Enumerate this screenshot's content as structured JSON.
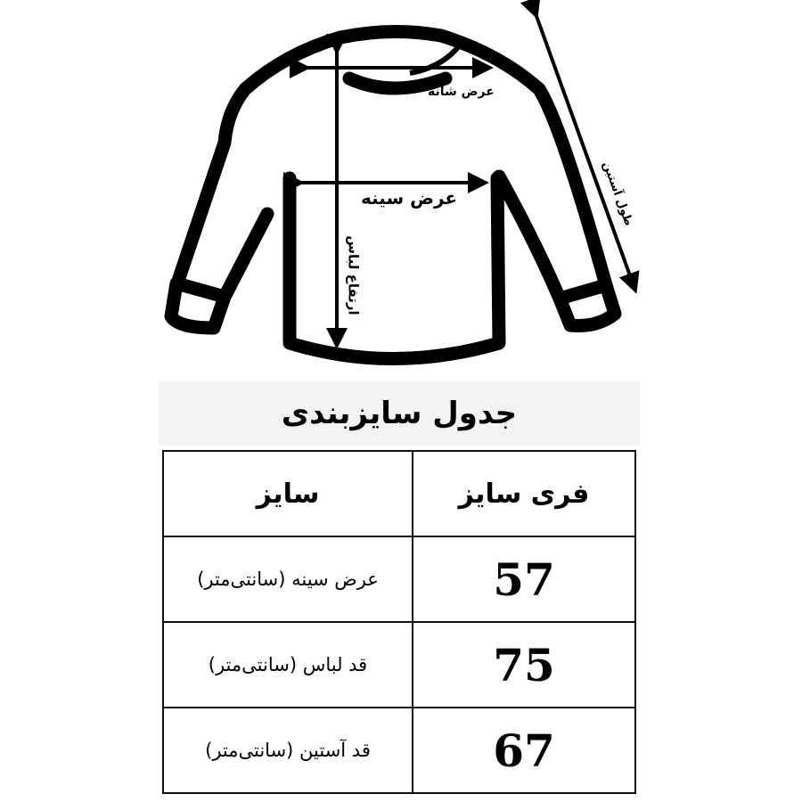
{
  "diagram": {
    "labels": {
      "shoulder_width": "عرض شانه",
      "chest_width": "عرض سینه",
      "garment_height": "ارتفاع لباس",
      "sleeve_length": "طول آستین"
    }
  },
  "table": {
    "title": "جدول سایزبندی",
    "headers": {
      "size": "سایز",
      "free_size": "فری سایز"
    },
    "rows": [
      {
        "label": "عرض سینه (سانتی‌متر)",
        "value": "57"
      },
      {
        "label": "قد لباس (سانتی‌متر)",
        "value": "75"
      },
      {
        "label": "قد آستین (سانتی‌متر)",
        "value": "67"
      }
    ]
  }
}
